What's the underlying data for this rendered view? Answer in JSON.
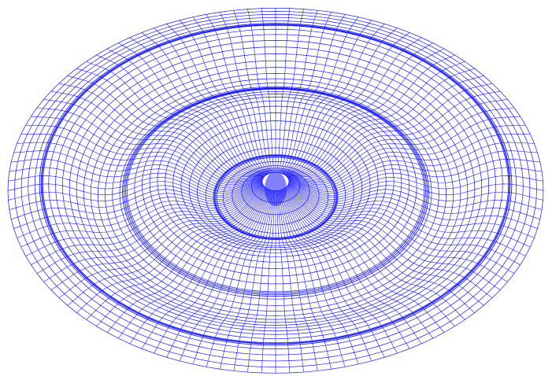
{
  "figure": {
    "type": "wireframe-surface",
    "description_visible_text": "",
    "colors": {
      "background": "#ffffff",
      "mesh_line": "#1a1aff"
    },
    "surface": {
      "kind": "ripple",
      "radial_divisions": 34,
      "angular_divisions": 120,
      "wave_crests": 3
    }
  }
}
